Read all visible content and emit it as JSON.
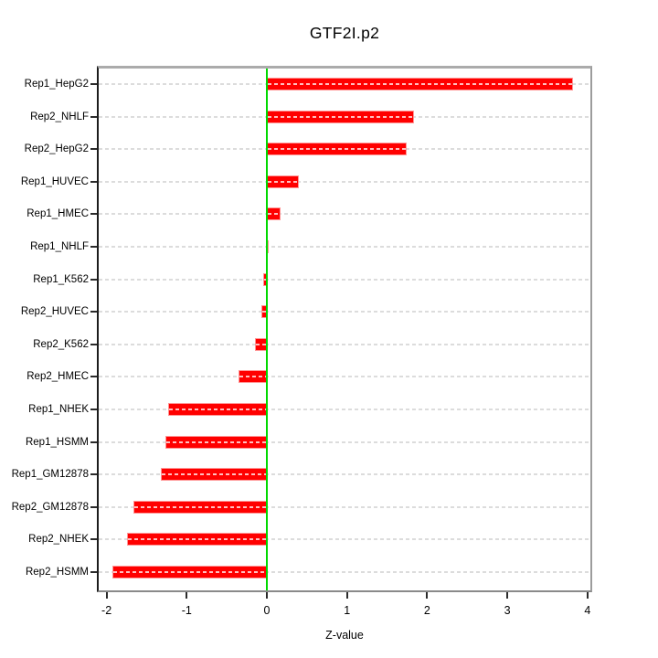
{
  "chart_data": {
    "type": "bar",
    "orientation": "horizontal",
    "title": "GTF2I.p2",
    "xlabel": "Z-value",
    "categories": [
      "Rep1_HepG2",
      "Rep2_NHLF",
      "Rep2_HepG2",
      "Rep1_HUVEC",
      "Rep1_HMEC",
      "Rep1_NHLF",
      "Rep1_K562",
      "Rep2_HUVEC",
      "Rep2_K562",
      "Rep2_HMEC",
      "Rep1_NHEK",
      "Rep1_HSMM",
      "Rep1_GM12878",
      "Rep2_GM12878",
      "Rep2_NHEK",
      "Rep2_HSMM"
    ],
    "values": [
      3.82,
      1.84,
      1.74,
      0.4,
      0.17,
      0.02,
      -0.05,
      -0.07,
      -0.15,
      -0.35,
      -1.23,
      -1.27,
      -1.32,
      -1.67,
      -1.74,
      -1.93
    ],
    "xticks": [
      -2,
      -1,
      0,
      1,
      2,
      3,
      4
    ],
    "xtick_labels": [
      "-2",
      "-1",
      "0",
      "1",
      "2",
      "3",
      "4"
    ],
    "xlim": [
      -2.1,
      4.05
    ],
    "grid": "horizontal dashed line per category",
    "legend": "none",
    "colors": {
      "bar_fill": "#ff0000",
      "bar_border": "#ff9595",
      "zero_line": "#00d900",
      "gridline": "#dcdcdc",
      "frame_top": "#ababab",
      "frame_left": "#1c1c1c",
      "text": "#000000"
    }
  }
}
